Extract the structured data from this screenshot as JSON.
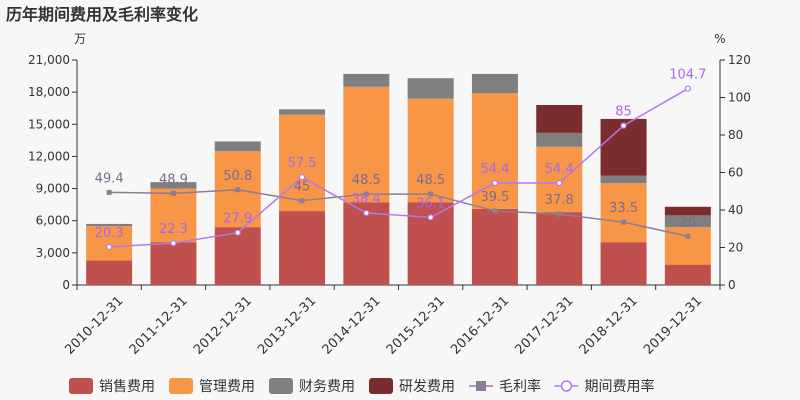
{
  "chart_data": {
    "type": "bar",
    "title": "历年期间费用及毛利率变化",
    "y_left_unit": "万",
    "y_right_unit": "%",
    "y_left_range": [
      0,
      21000
    ],
    "y_left_ticks": [
      "0",
      "3,000",
      "6,000",
      "9,000",
      "12,000",
      "15,000",
      "18,000",
      "21,000"
    ],
    "y_left_tick_values": [
      0,
      3000,
      6000,
      9000,
      12000,
      15000,
      18000,
      21000
    ],
    "y_right_range": [
      0,
      120
    ],
    "y_right_ticks": [
      "0",
      "20",
      "40",
      "60",
      "80",
      "100",
      "120"
    ],
    "y_right_tick_values": [
      0,
      20,
      40,
      60,
      80,
      100,
      120
    ],
    "categories": [
      "2010-12-31",
      "2011-12-31",
      "2012-12-31",
      "2013-12-31",
      "2014-12-31",
      "2015-12-31",
      "2016-12-31",
      "2017-12-31",
      "2018-12-31",
      "2019-12-31"
    ],
    "bar_series": [
      {
        "name": "销售费用",
        "color": "#c0504d",
        "values": [
          2300,
          4000,
          5400,
          6900,
          7700,
          7700,
          7100,
          6800,
          4000,
          1900
        ]
      },
      {
        "name": "管理费用",
        "color": "#f79646",
        "values": [
          3200,
          5000,
          7100,
          9000,
          10800,
          9700,
          10800,
          6100,
          5500,
          3500
        ]
      },
      {
        "name": "财务费用",
        "color": "#7f7f7f",
        "values": [
          200,
          600,
          900,
          500,
          1200,
          1900,
          1800,
          1300,
          700,
          1100
        ]
      },
      {
        "name": "研发费用",
        "color": "#7b2c2c",
        "values": [
          0,
          0,
          0,
          0,
          0,
          0,
          0,
          2600,
          5300,
          800
        ]
      }
    ],
    "line_series": [
      {
        "name": "毛利率",
        "color": "#8c7d94",
        "marker": "square",
        "values": [
          49.4,
          48.9,
          50.8,
          45,
          48.5,
          48.5,
          39.5,
          37.8,
          33.5,
          26
        ],
        "labels": [
          "49.4",
          "48.9",
          "50.8",
          "45",
          "48.5",
          "48.5",
          "39.5",
          "37.8",
          "33.5",
          "26"
        ]
      },
      {
        "name": "期间费用率",
        "color": "#b07ae8",
        "marker": "circle",
        "values": [
          20.3,
          22.3,
          27.9,
          57.5,
          38.4,
          36.1,
          54.4,
          54.4,
          85,
          104.7
        ],
        "labels": [
          "20.3",
          "22.3",
          "27.9",
          "57.5",
          "38.4",
          "36.1",
          "54.4",
          "54.4",
          "85",
          "104.7"
        ]
      }
    ],
    "legend_position": "bottom",
    "grid": false
  }
}
